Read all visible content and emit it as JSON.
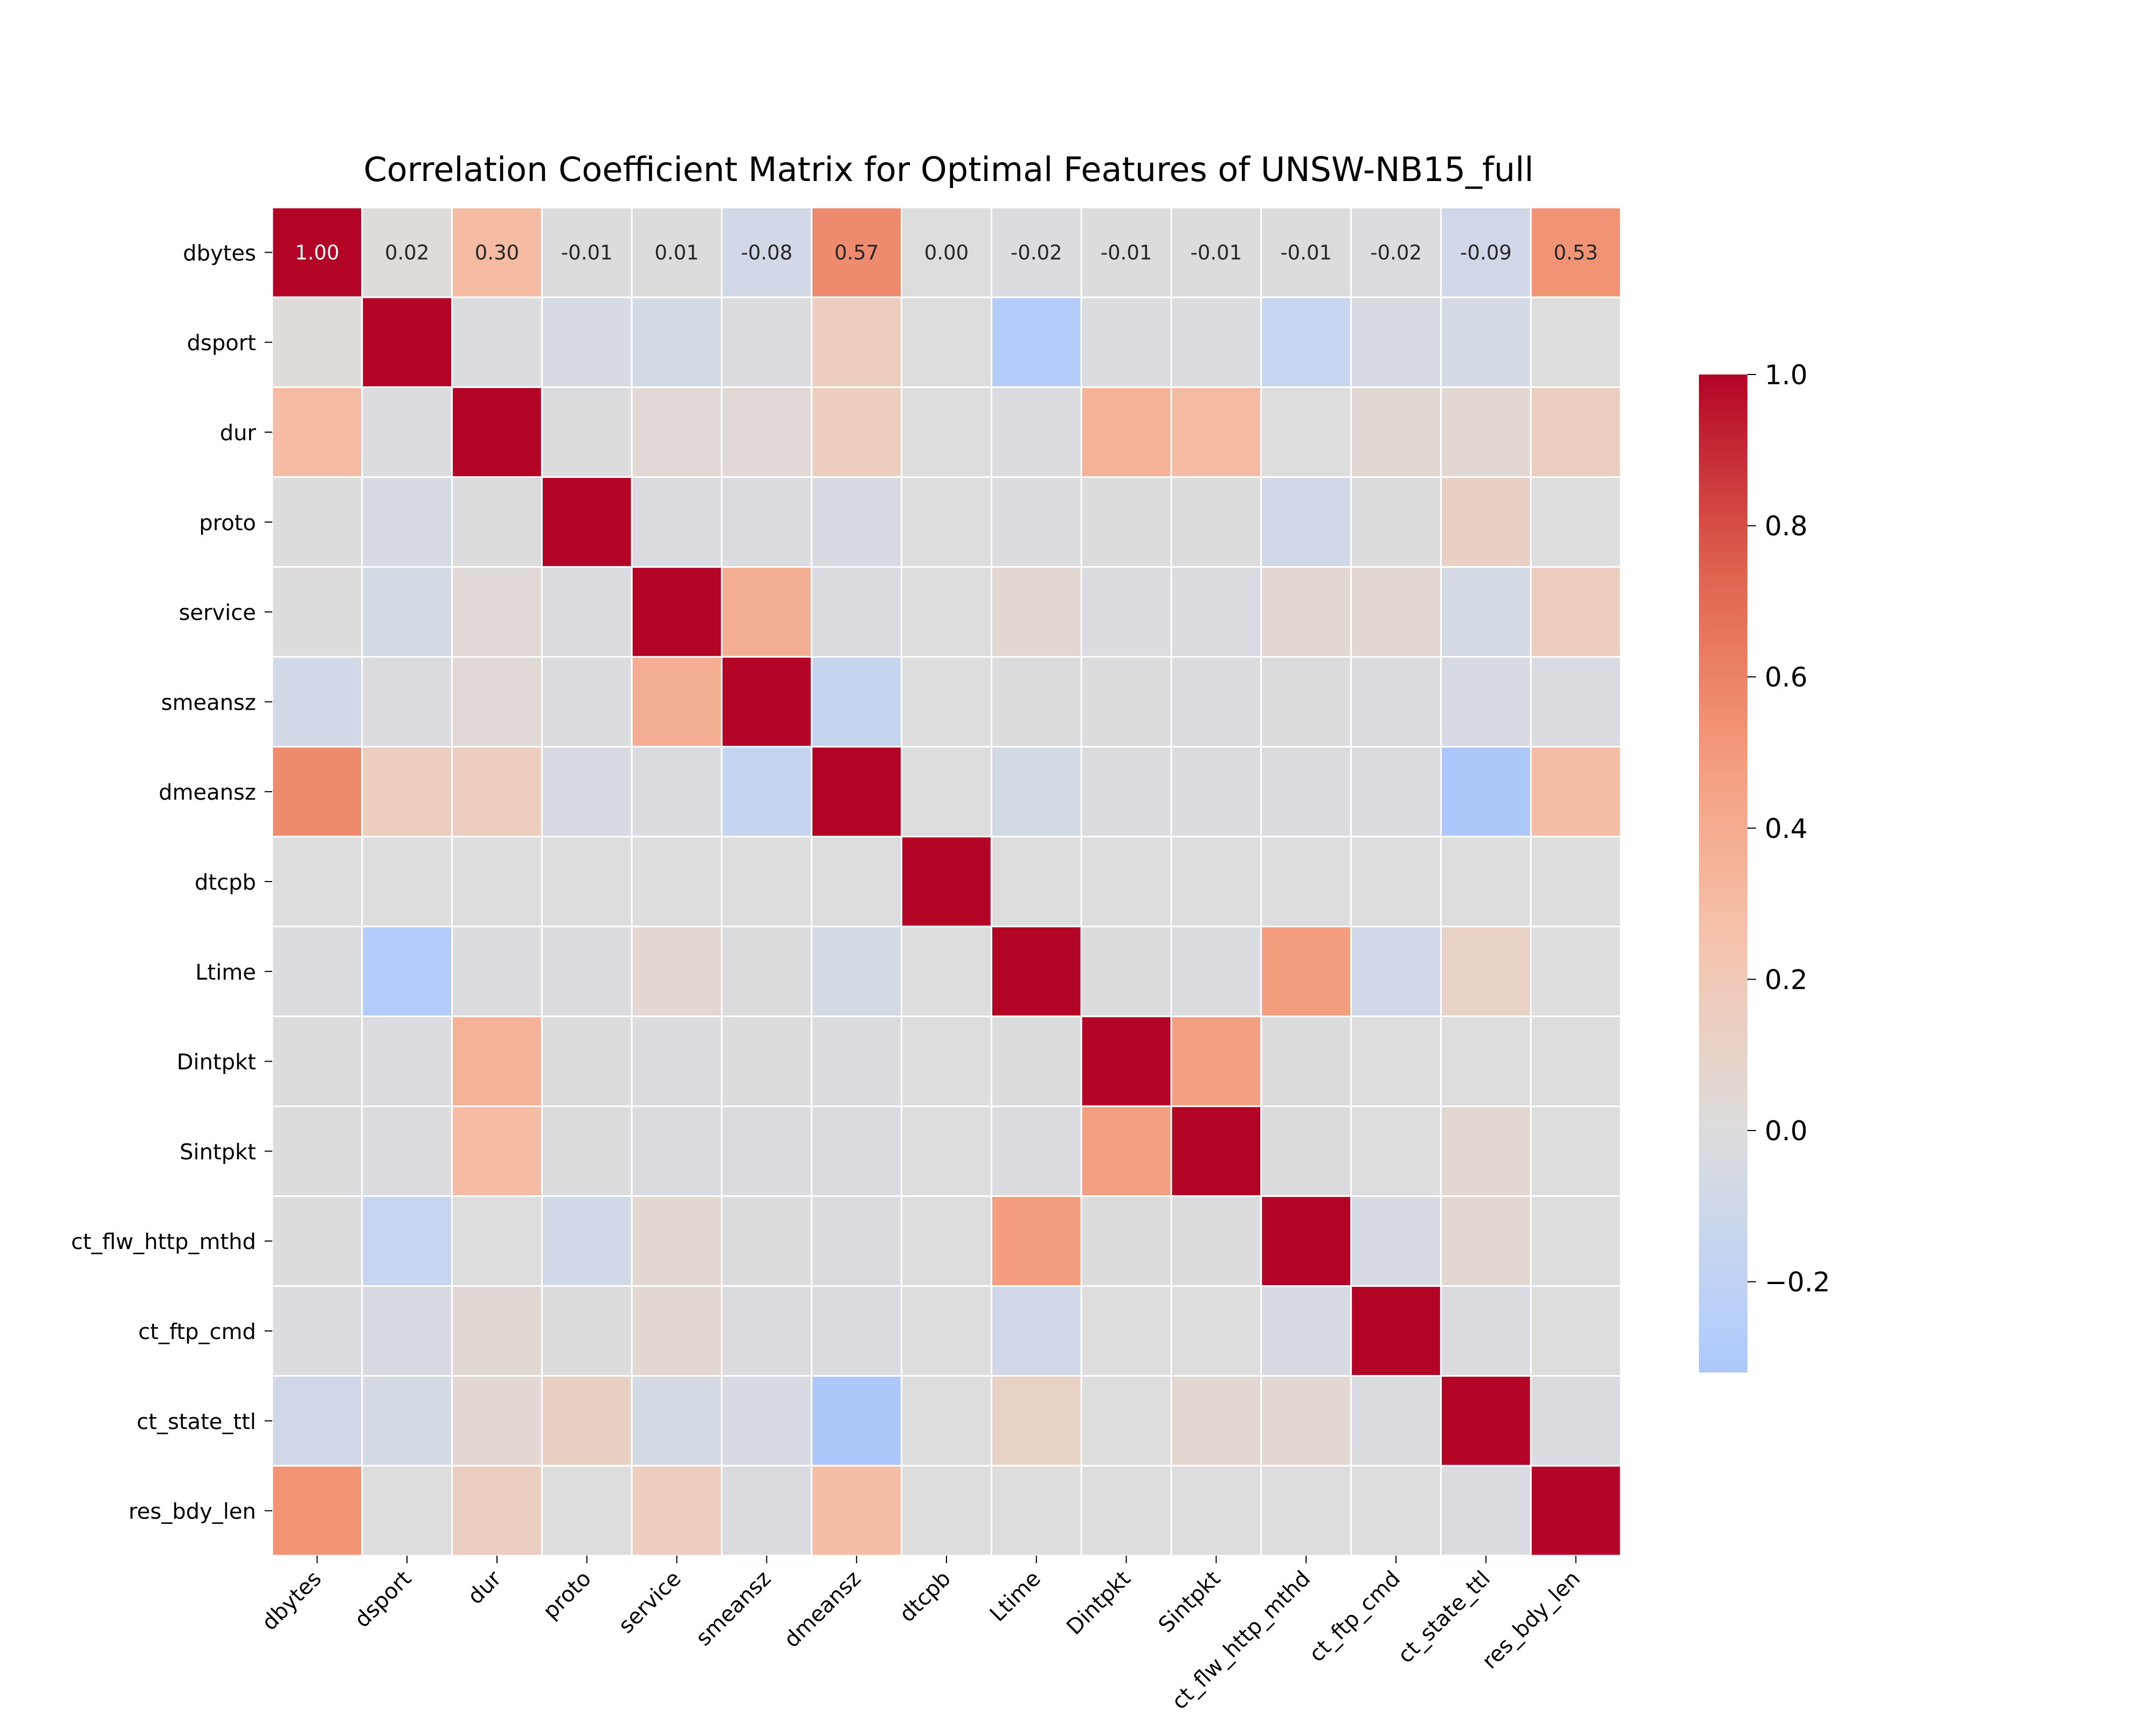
{
  "chart_data": {
    "type": "heatmap",
    "title": "Correlation Coefficient Matrix for Optimal Features of UNSW-NB15_full",
    "xlabel": "",
    "ylabel": "",
    "labels": [
      "dbytes",
      "dsport",
      "dur",
      "proto",
      "service",
      "smeansz",
      "dmeansz",
      "dtcpb",
      "Ltime",
      "Dintpkt",
      "Sintpkt",
      "ct_flw_http_mthd",
      "ct_ftp_cmd",
      "ct_state_ttl",
      "res_bdy_len"
    ],
    "matrix": [
      [
        1.0,
        0.02,
        0.3,
        -0.01,
        0.01,
        -0.08,
        0.57,
        0.0,
        -0.02,
        -0.01,
        -0.01,
        -0.01,
        -0.02,
        -0.09,
        0.53
      ],
      [
        0.02,
        1.0,
        -0.02,
        -0.05,
        -0.06,
        -0.02,
        0.16,
        0.0,
        -0.28,
        -0.02,
        -0.02,
        -0.15,
        -0.04,
        -0.06,
        0.0
      ],
      [
        0.3,
        -0.02,
        1.0,
        -0.01,
        0.04,
        0.04,
        0.16,
        0.0,
        -0.02,
        0.36,
        0.3,
        0.0,
        0.05,
        0.06,
        0.15
      ],
      [
        -0.01,
        -0.05,
        -0.01,
        1.0,
        -0.03,
        -0.02,
        -0.04,
        0.0,
        -0.02,
        -0.01,
        -0.01,
        -0.08,
        -0.01,
        0.13,
        0.0
      ],
      [
        0.01,
        -0.06,
        0.04,
        -0.03,
        1.0,
        0.38,
        -0.03,
        0.0,
        0.07,
        -0.02,
        -0.03,
        0.06,
        0.06,
        -0.06,
        0.16
      ],
      [
        -0.08,
        -0.02,
        0.04,
        -0.02,
        0.38,
        1.0,
        -0.16,
        0.0,
        -0.01,
        -0.01,
        -0.02,
        -0.01,
        -0.03,
        -0.05,
        -0.03
      ],
      [
        0.57,
        0.16,
        0.16,
        -0.04,
        -0.03,
        -0.16,
        1.0,
        0.0,
        -0.06,
        -0.02,
        -0.03,
        -0.02,
        -0.03,
        -0.32,
        0.29
      ],
      [
        0.0,
        0.0,
        0.0,
        0.0,
        0.0,
        0.0,
        0.0,
        1.0,
        0.0,
        0.0,
        0.0,
        0.0,
        0.0,
        0.0,
        0.0
      ],
      [
        -0.02,
        -0.28,
        -0.02,
        -0.02,
        0.07,
        -0.01,
        -0.06,
        0.0,
        1.0,
        -0.01,
        -0.02,
        0.48,
        -0.09,
        0.11,
        0.0
      ],
      [
        -0.01,
        -0.02,
        0.36,
        -0.01,
        -0.02,
        -0.01,
        -0.02,
        0.0,
        -0.01,
        1.0,
        0.47,
        -0.01,
        0.0,
        0.0,
        0.0
      ],
      [
        -0.01,
        -0.02,
        0.3,
        -0.01,
        -0.03,
        -0.02,
        -0.03,
        0.0,
        -0.02,
        0.47,
        1.0,
        -0.01,
        0.0,
        0.06,
        0.0
      ],
      [
        -0.01,
        -0.15,
        0.0,
        -0.08,
        0.06,
        -0.01,
        -0.02,
        0.0,
        0.48,
        -0.01,
        -0.01,
        1.0,
        -0.04,
        0.06,
        0.0
      ],
      [
        -0.02,
        -0.04,
        0.05,
        -0.01,
        0.06,
        -0.03,
        -0.03,
        0.0,
        -0.09,
        0.0,
        0.0,
        -0.04,
        1.0,
        -0.03,
        0.0
      ],
      [
        -0.09,
        -0.06,
        0.06,
        0.13,
        -0.06,
        -0.05,
        -0.32,
        0.0,
        0.11,
        0.0,
        0.06,
        0.06,
        -0.03,
        1.0,
        -0.03
      ],
      [
        0.53,
        0.0,
        0.15,
        0.0,
        0.16,
        -0.03,
        0.29,
        0.0,
        0.0,
        0.0,
        0.0,
        0.0,
        0.0,
        -0.03,
        1.0
      ]
    ],
    "annotated_rows": [
      0
    ],
    "colormap": "coolwarm",
    "vmin": -0.32,
    "vmax": 1.0,
    "colorbar": {
      "ticks": [
        1.0,
        0.8,
        0.6,
        0.4,
        0.2,
        0.0,
        -0.2
      ],
      "tick_labels": [
        "1.0",
        "0.8",
        "0.6",
        "0.4",
        "0.2",
        "0.0",
        "−0.2"
      ]
    },
    "grid": true,
    "grid_color": "#ffffff"
  }
}
